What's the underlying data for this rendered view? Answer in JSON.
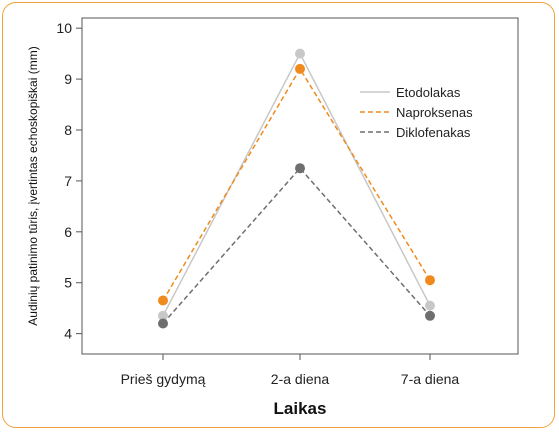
{
  "chart_data": {
    "type": "line",
    "categories": [
      "Prieš gydymą",
      "2-a diena",
      "7-a diena"
    ],
    "series": [
      {
        "name": "Etodolakas",
        "values": [
          4.35,
          9.5,
          4.55
        ],
        "color": "#c8c8c8",
        "dash": "solid"
      },
      {
        "name": "Naproksenas",
        "values": [
          4.65,
          9.2,
          5.05
        ],
        "color": "#f08a1c",
        "dash": "dashed"
      },
      {
        "name": "Diklofenakas",
        "values": [
          4.2,
          7.25,
          4.35
        ],
        "color": "#6e6e6e",
        "dash": "dashed"
      }
    ],
    "xlabel": "Laikas",
    "ylabel": "Audinių patinimo tūris, įvertintas echoskopiškai (mm)",
    "ylim": [
      3.6,
      10.2
    ],
    "yticks": [
      4,
      5,
      6,
      7,
      8,
      9,
      10
    ],
    "legend_position": "right",
    "grid": false
  }
}
